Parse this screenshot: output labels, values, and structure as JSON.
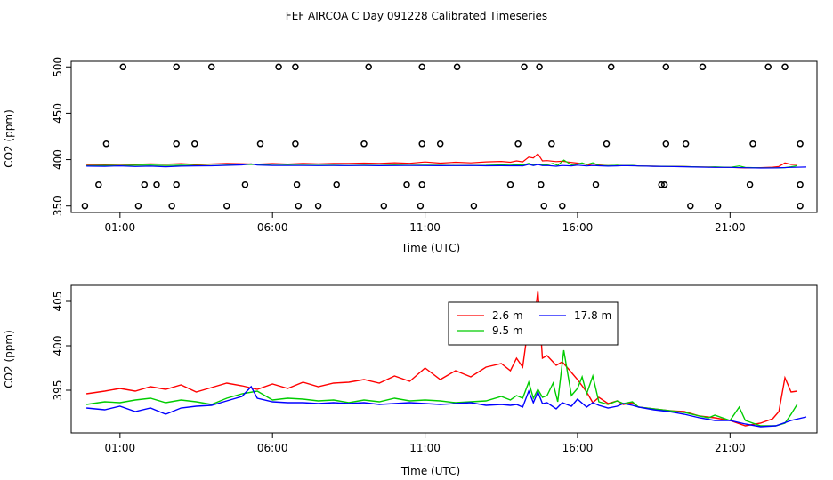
{
  "chart_data": {
    "title": "FEF AIRCOA C  Day 091228  Calibrated Timeseries",
    "panels": [
      {
        "id": "top",
        "type": "line",
        "xlabel": "Time (UTC)",
        "ylabel": "CO2 (ppm)",
        "xlim": [
          -0.6,
          23.85
        ],
        "ylim": [
          343,
          506
        ],
        "xticks": [
          1,
          6,
          11,
          16,
          21
        ],
        "xtick_labels": [
          "01:00",
          "06:00",
          "11:00",
          "16:00",
          "21:00"
        ],
        "yticks": [
          350,
          400,
          450,
          500
        ],
        "ytick_labels": [
          "350",
          "400",
          "450",
          "500"
        ],
        "calibration_points": {
          "marker": "open-circle",
          "t500": [
            1.1,
            2.85,
            4.0,
            6.2,
            6.75,
            9.15,
            10.9,
            12.05,
            14.25,
            14.75,
            17.1,
            18.9,
            20.1,
            22.25,
            22.8
          ],
          "t417": [
            0.55,
            2.85,
            3.45,
            5.6,
            6.75,
            9.0,
            10.9,
            11.5,
            14.05,
            15.15,
            16.95,
            18.9,
            19.55,
            21.75,
            23.3
          ],
          "t395": [
            0.3,
            1.8,
            2.2,
            2.85,
            5.1,
            6.8,
            8.1,
            10.4,
            10.9,
            13.8,
            14.8,
            16.6,
            18.75,
            18.85,
            21.65,
            23.3
          ],
          "t350": [
            -0.15,
            1.6,
            2.7,
            4.5,
            6.85,
            7.5,
            9.65,
            10.85,
            12.6,
            14.9,
            15.5,
            19.7,
            20.6,
            23.3
          ]
        },
        "series": [
          {
            "name": "2.6 m",
            "color": "#ff0000",
            "base": 394.5
          },
          {
            "name": "9.5 m",
            "color": "#00cc00",
            "base": 393.0
          },
          {
            "name": "17.8 m",
            "color": "#0000ff",
            "base": 393.0
          }
        ]
      },
      {
        "id": "bottom",
        "type": "line",
        "xlabel": "Time (UTC)",
        "ylabel": "CO2 (ppm)",
        "xlim": [
          -0.6,
          23.85
        ],
        "ylim": [
          390.2,
          406.8
        ],
        "xticks": [
          1,
          6,
          11,
          16,
          21
        ],
        "xtick_labels": [
          "01:00",
          "06:00",
          "11:00",
          "16:00",
          "21:00"
        ],
        "yticks": [
          395,
          400,
          405
        ],
        "ytick_labels": [
          "395",
          "400",
          "405"
        ],
        "legend": {
          "placement": "top-center"
        },
        "series": [
          {
            "name": "2.6 m",
            "color": "#ff0000",
            "x": [
              -0.1,
              0.5,
              1.0,
              1.5,
              2.0,
              2.5,
              3.0,
              3.5,
              4.0,
              4.5,
              5.0,
              5.5,
              6.0,
              6.5,
              7.0,
              7.5,
              8.0,
              8.5,
              9.0,
              9.5,
              10.0,
              10.5,
              11.0,
              11.5,
              12.0,
              12.5,
              13.0,
              13.5,
              13.8,
              14.0,
              14.2,
              14.4,
              14.55,
              14.7,
              14.85,
              15.0,
              15.3,
              15.5,
              15.7,
              16.0,
              16.3,
              16.5,
              16.7,
              17.0,
              17.3,
              17.5,
              17.8,
              18.0,
              18.5,
              19.0,
              19.5,
              20.0,
              20.5,
              21.0,
              21.5,
              22.0,
              22.4,
              22.6,
              22.8,
              23.0,
              23.2
            ],
            "values": [
              394.6,
              394.9,
              395.2,
              394.9,
              395.4,
              395.1,
              395.6,
              394.8,
              395.3,
              395.8,
              395.5,
              395.1,
              395.7,
              395.2,
              395.9,
              395.4,
              395.8,
              395.9,
              396.2,
              395.8,
              396.6,
              396.0,
              397.5,
              396.2,
              397.2,
              396.5,
              397.6,
              398.0,
              397.2,
              398.6,
              397.6,
              402.6,
              401.8,
              406.2,
              398.6,
              398.9,
              397.8,
              398.2,
              397.4,
              396.2,
              394.8,
              393.6,
              394.2,
              393.5,
              393.8,
              393.4,
              393.6,
              393.1,
              392.9,
              392.7,
              392.6,
              392.1,
              391.9,
              391.6,
              391.0,
              391.3,
              391.8,
              392.6,
              396.4,
              394.8,
              394.9
            ]
          },
          {
            "name": "9.5 m",
            "color": "#00cc00",
            "x": [
              -0.1,
              0.5,
              1.0,
              1.5,
              2.0,
              2.5,
              3.0,
              3.5,
              4.0,
              4.5,
              5.0,
              5.5,
              6.0,
              6.5,
              7.0,
              7.5,
              8.0,
              8.5,
              9.0,
              9.5,
              10.0,
              10.5,
              11.0,
              11.5,
              12.0,
              12.5,
              13.0,
              13.5,
              13.8,
              14.0,
              14.2,
              14.4,
              14.55,
              14.7,
              14.85,
              15.0,
              15.2,
              15.35,
              15.55,
              15.8,
              16.0,
              16.15,
              16.3,
              16.5,
              16.7,
              17.0,
              17.3,
              17.5,
              17.8,
              18.0,
              18.5,
              19.0,
              19.5,
              20.0,
              20.3,
              20.5,
              21.0,
              21.3,
              21.5,
              22.0,
              22.5,
              22.8,
              23.0,
              23.2
            ],
            "values": [
              393.4,
              393.7,
              393.6,
              393.9,
              394.1,
              393.6,
              393.9,
              393.7,
              393.4,
              394.1,
              394.6,
              394.9,
              393.9,
              394.1,
              394.0,
              393.8,
              393.9,
              393.6,
              393.9,
              393.7,
              394.1,
              393.8,
              393.9,
              393.8,
              393.6,
              393.7,
              393.8,
              394.3,
              393.9,
              394.4,
              394.1,
              395.9,
              394.1,
              395.1,
              394.2,
              394.4,
              395.8,
              393.7,
              399.5,
              394.4,
              395.2,
              396.5,
              394.6,
              396.6,
              393.7,
              393.4,
              393.8,
              393.5,
              393.7,
              393.1,
              392.9,
              392.7,
              392.5,
              392.1,
              391.9,
              392.2,
              391.6,
              393.1,
              391.6,
              391.0,
              391.0,
              391.3,
              392.3,
              393.4
            ]
          },
          {
            "name": "17.8 m",
            "color": "#0000ff",
            "x": [
              -0.1,
              0.5,
              1.0,
              1.5,
              2.0,
              2.5,
              3.0,
              3.5,
              4.0,
              4.5,
              5.0,
              5.3,
              5.5,
              6.0,
              6.5,
              7.0,
              7.5,
              8.0,
              8.5,
              9.0,
              9.5,
              10.0,
              10.5,
              11.0,
              11.5,
              12.0,
              12.5,
              13.0,
              13.5,
              13.8,
              14.0,
              14.2,
              14.4,
              14.55,
              14.7,
              14.85,
              15.0,
              15.3,
              15.5,
              15.8,
              16.0,
              16.3,
              16.5,
              16.7,
              17.0,
              17.3,
              17.5,
              17.8,
              18.0,
              18.5,
              19.0,
              19.5,
              20.0,
              20.5,
              21.0,
              21.5,
              22.0,
              22.5,
              23.0,
              23.5
            ],
            "values": [
              393.0,
              392.8,
              393.2,
              392.6,
              393.0,
              392.3,
              393.0,
              393.2,
              393.3,
              393.8,
              394.3,
              395.4,
              394.1,
              393.7,
              393.6,
              393.6,
              393.5,
              393.6,
              393.5,
              393.6,
              393.4,
              393.5,
              393.6,
              393.5,
              393.4,
              393.5,
              393.6,
              393.3,
              393.4,
              393.3,
              393.4,
              393.1,
              394.9,
              393.6,
              394.8,
              393.5,
              393.6,
              392.9,
              393.6,
              393.2,
              394.0,
              393.1,
              393.6,
              393.3,
              393.0,
              393.2,
              393.5,
              393.3,
              393.1,
              392.8,
              392.6,
              392.3,
              391.9,
              391.6,
              391.6,
              391.2,
              390.9,
              391.0,
              391.6,
              392.0
            ]
          }
        ]
      }
    ]
  }
}
